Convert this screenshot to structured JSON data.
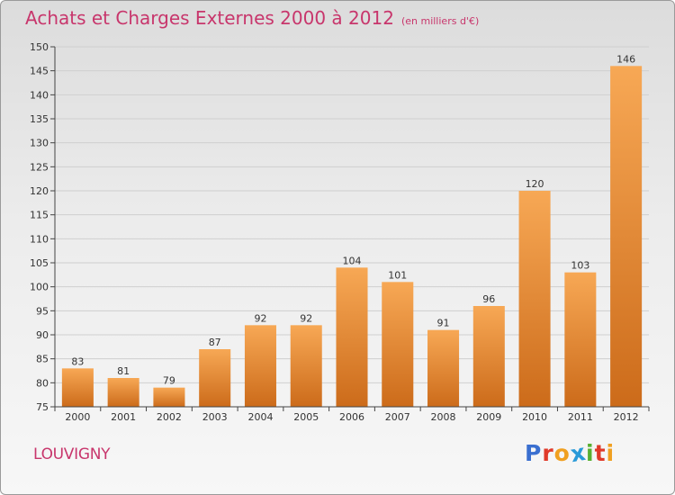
{
  "header": {
    "title": "Achats et Charges Externes 2000 à 2012",
    "unit": "(en milliers d'€)"
  },
  "footer": {
    "commune": "LOUVIGNY",
    "logo_letters": [
      {
        "ch": "P",
        "color": "#3a6fd0"
      },
      {
        "ch": "r",
        "color": "#e03a2a"
      },
      {
        "ch": "o",
        "color": "#f0a020"
      },
      {
        "ch": "x",
        "color": "#2a9ad8"
      },
      {
        "ch": "i",
        "color": "#58b030"
      },
      {
        "ch": "t",
        "color": "#e03a2a"
      },
      {
        "ch": "i",
        "color": "#f0a020"
      }
    ]
  },
  "colors": {
    "bar_light": "#f7a855",
    "bar_dark": "#cc6b1a",
    "axis": "#444444",
    "grid": "#cfcfcf",
    "title": "#c8366c"
  },
  "chart_data": {
    "type": "bar",
    "title": "Achats et Charges Externes 2000 à 2012",
    "subtitle": "(en milliers d'€)",
    "categories": [
      "2000",
      "2001",
      "2002",
      "2003",
      "2004",
      "2005",
      "2006",
      "2007",
      "2008",
      "2009",
      "2010",
      "2011",
      "2012"
    ],
    "values": [
      83,
      81,
      79,
      87,
      92,
      92,
      104,
      101,
      91,
      96,
      120,
      103,
      146
    ],
    "ylim": [
      75,
      150
    ],
    "yticks": [
      75,
      80,
      85,
      90,
      95,
      100,
      105,
      110,
      115,
      120,
      125,
      130,
      135,
      140,
      145,
      150
    ],
    "grid": true,
    "data_labels": true
  }
}
